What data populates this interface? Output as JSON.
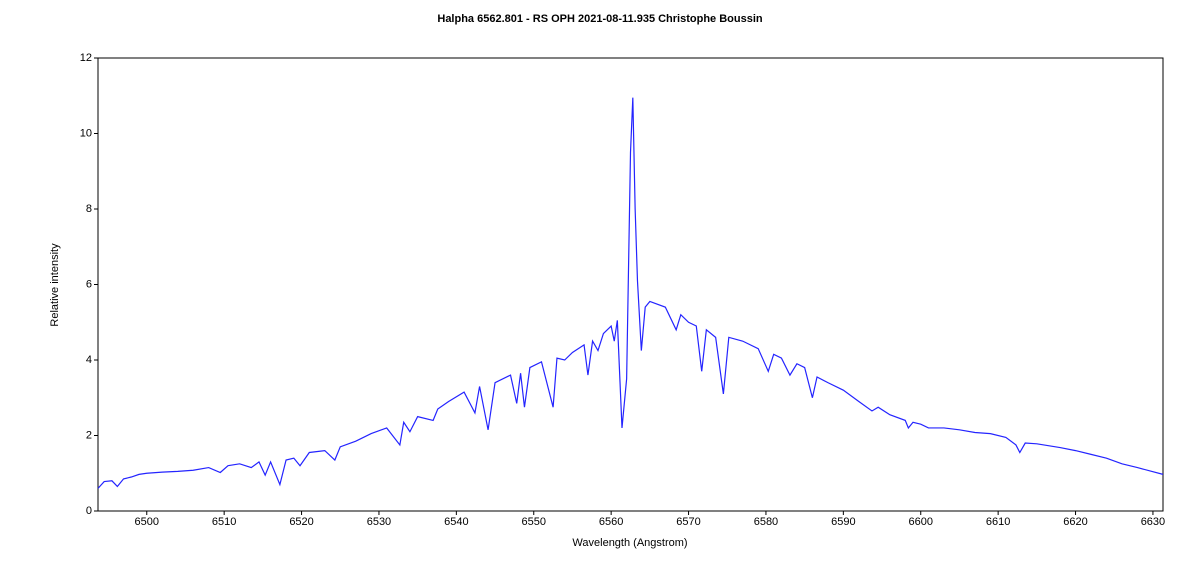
{
  "chart_data": {
    "type": "line",
    "title": "Halpha 6562.801 - RS OPH   2021-08-11.935   Christophe Boussin",
    "x_label": "Wavelength (Angstrom)",
    "y_label": "Relative intensity",
    "xlim": [
      6493.7,
      6631.3
    ],
    "ylim": [
      0,
      12
    ],
    "xticks": [
      6500,
      6510,
      6520,
      6530,
      6540,
      6550,
      6560,
      6570,
      6580,
      6590,
      6600,
      6610,
      6620,
      6630
    ],
    "yticks": [
      0,
      2,
      4,
      6,
      8,
      10,
      12
    ],
    "grid": false,
    "series": [
      {
        "color": "#2424ff",
        "x": [
          6493.7,
          6494.5,
          6495.5,
          6496.2,
          6497,
          6498,
          6499,
          6500,
          6502,
          6504,
          6506,
          6508,
          6509.5,
          6510.5,
          6512,
          6513.5,
          6514.5,
          6515.3,
          6516,
          6517.2,
          6518,
          6519,
          6519.8,
          6521,
          6523,
          6524.3,
          6525,
          6527,
          6529,
          6531,
          6532.7,
          6533.2,
          6534,
          6535,
          6537,
          6537.6,
          6539,
          6541,
          6542.4,
          6543,
          6544.1,
          6545,
          6547,
          6547.8,
          6548.3,
          6548.8,
          6549.5,
          6551,
          6552.5,
          6553,
          6554,
          6555,
          6556.5,
          6557,
          6557.6,
          6558.3,
          6559,
          6560,
          6560.4,
          6560.8,
          6561.4,
          6562,
          6562.5,
          6562.8,
          6563.1,
          6563.4,
          6563.9,
          6564.4,
          6565,
          6567,
          6568.4,
          6569,
          6570,
          6571,
          6571.7,
          6572.3,
          6573.5,
          6574.5,
          6575.2,
          6577,
          6579,
          6580.3,
          6581,
          6582,
          6583.1,
          6584,
          6585,
          6586,
          6586.6,
          6588,
          6590,
          6592,
          6593.7,
          6594.5,
          6596,
          6598,
          6598.4,
          6599,
          6600,
          6601,
          6603,
          6605,
          6607,
          6609,
          6611,
          6612.3,
          6612.8,
          6613.5,
          6615,
          6618,
          6620,
          6622,
          6624,
          6626,
          6628,
          6631.3
        ],
        "values": [
          0.6,
          0.78,
          0.8,
          0.65,
          0.85,
          0.9,
          0.97,
          1.0,
          1.03,
          1.05,
          1.08,
          1.15,
          1.02,
          1.2,
          1.25,
          1.15,
          1.3,
          0.95,
          1.3,
          0.7,
          1.35,
          1.4,
          1.2,
          1.55,
          1.6,
          1.35,
          1.7,
          1.85,
          2.05,
          2.2,
          1.75,
          2.35,
          2.1,
          2.5,
          2.4,
          2.7,
          2.9,
          3.15,
          2.6,
          3.3,
          2.15,
          3.4,
          3.6,
          2.85,
          3.65,
          2.75,
          3.8,
          3.95,
          2.75,
          4.05,
          4.0,
          4.2,
          4.4,
          3.6,
          4.5,
          4.25,
          4.7,
          4.9,
          4.5,
          5.05,
          2.2,
          3.5,
          9.5,
          10.95,
          8,
          6.1,
          4.25,
          5.4,
          5.55,
          5.4,
          4.8,
          5.2,
          5.0,
          4.9,
          3.7,
          4.8,
          4.6,
          3.1,
          4.6,
          4.5,
          4.3,
          3.7,
          4.15,
          4.05,
          3.6,
          3.9,
          3.8,
          3.0,
          3.55,
          3.4,
          3.2,
          2.9,
          2.65,
          2.75,
          2.55,
          2.4,
          2.2,
          2.35,
          2.3,
          2.2,
          2.2,
          2.15,
          2.08,
          2.05,
          1.95,
          1.75,
          1.55,
          1.8,
          1.78,
          1.68,
          1.6,
          1.5,
          1.4,
          1.25,
          1.15,
          0.97
        ]
      }
    ]
  }
}
